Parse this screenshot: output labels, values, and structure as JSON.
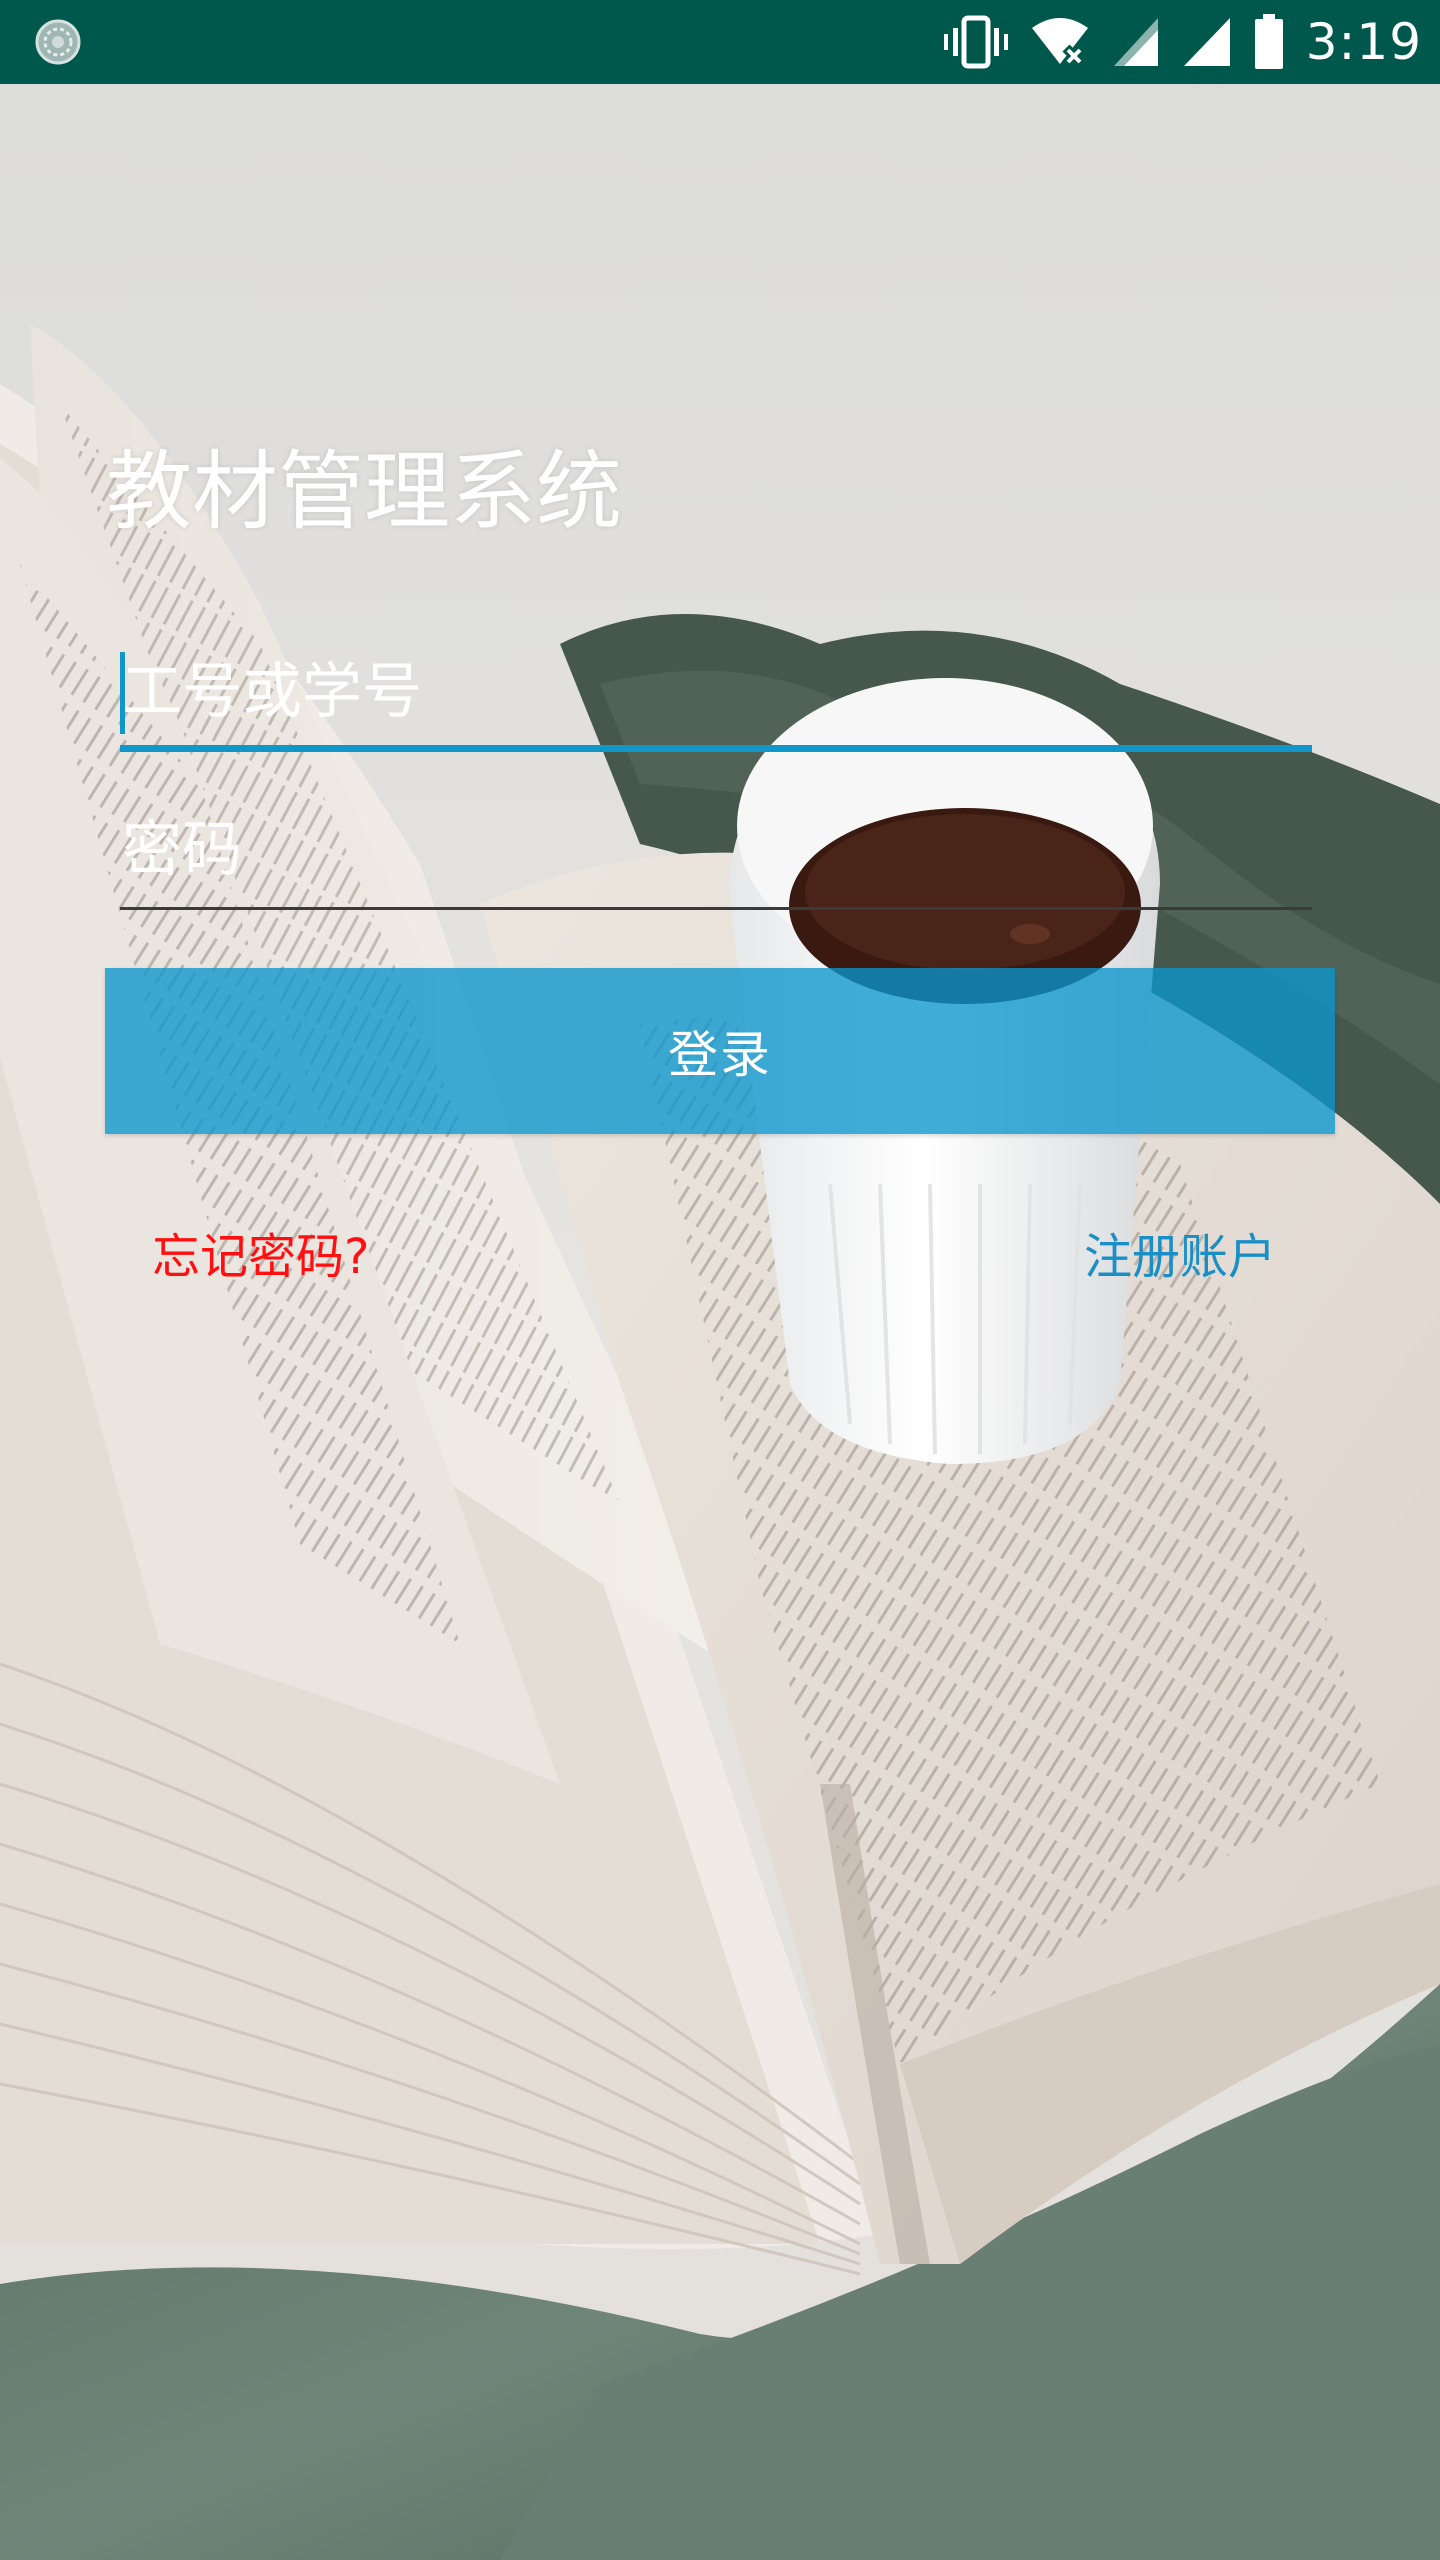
{
  "status_bar": {
    "time": "3:19",
    "icons": [
      "app-notification-icon",
      "vibrate-icon",
      "wifi-off-icon",
      "signal-icon",
      "signal-icon",
      "battery-icon"
    ]
  },
  "login": {
    "title": "教材管理系统",
    "username_placeholder": "工号或学号",
    "password_placeholder": "密码",
    "login_label": "登录",
    "forgot_password_label": "忘记密码?",
    "register_label": "注册账户"
  },
  "colors": {
    "status_bar": "#00574b",
    "accent": "#1196c9",
    "button": "#0a96cd",
    "forgot_link": "#ff0f0f",
    "register_link": "#1a8fc6"
  }
}
